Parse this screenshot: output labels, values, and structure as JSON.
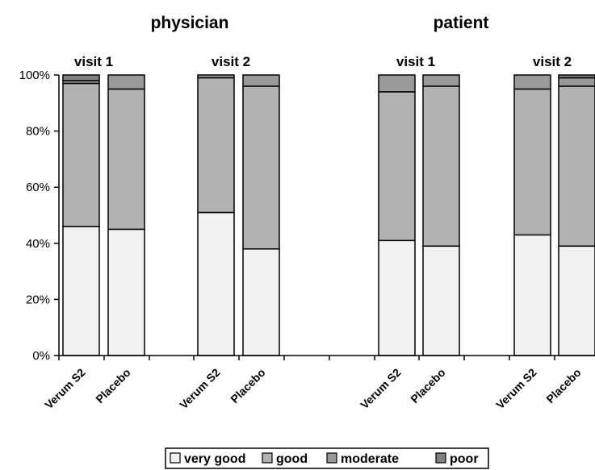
{
  "chart_data": {
    "type": "bar",
    "stacked": true,
    "group_titles": [
      "physician",
      "patient"
    ],
    "visit_labels": [
      "visit 1",
      "visit 2",
      "visit 1",
      "visit 2"
    ],
    "categories": [
      "Verum S2",
      "Placebo",
      "Verum S2",
      "Placebo",
      "Verum S2",
      "Placebo",
      "Verum S2",
      "Placebo"
    ],
    "series": [
      {
        "name": "very good",
        "color": "#f2f2f2",
        "values": [
          46,
          45,
          51,
          38,
          41,
          39,
          43,
          39
        ]
      },
      {
        "name": "good",
        "color": "#b2b2b2",
        "values": [
          51,
          50,
          48,
          58,
          53,
          57,
          52,
          57
        ]
      },
      {
        "name": "moderate",
        "color": "#999999",
        "values": [
          1,
          5,
          1,
          4,
          6,
          4,
          5,
          3
        ]
      },
      {
        "name": "poor",
        "color": "#808080",
        "values": [
          2,
          0,
          0,
          0,
          0,
          0,
          0,
          1
        ]
      }
    ],
    "y_ticks": [
      "0%",
      "20%",
      "40%",
      "60%",
      "80%",
      "100%"
    ],
    "ylim": [
      0,
      100
    ],
    "legend_position": "bottom",
    "grid": false
  }
}
